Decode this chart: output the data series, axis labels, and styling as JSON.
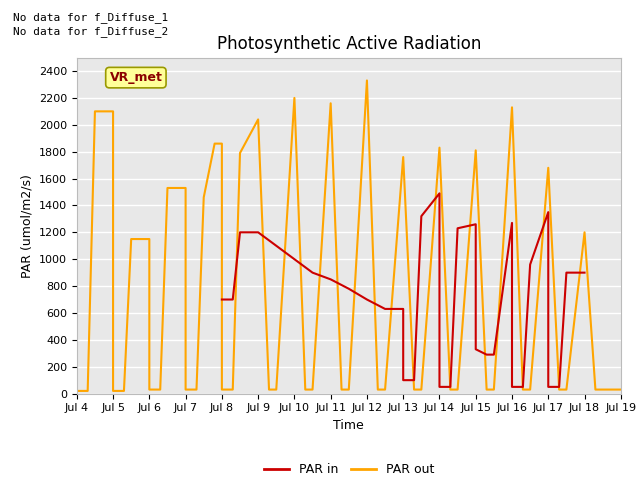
{
  "title": "Photosynthetic Active Radiation",
  "ylabel": "PAR (umol/m2/s)",
  "xlabel": "Time",
  "ylim": [
    0,
    2500
  ],
  "xlim": [
    4,
    19
  ],
  "notes": [
    "No data for f_Diffuse_1",
    "No data for f_Diffuse_2"
  ],
  "legend_label": "VR_met",
  "par_out_x": [
    4,
    4.3,
    4.5,
    5,
    5,
    5.3,
    5.5,
    6,
    6,
    6.3,
    6.5,
    7,
    7,
    7.3,
    7.5,
    7.8,
    8,
    8,
    8.3,
    8.5,
    9,
    9,
    9.3,
    9.5,
    10,
    10,
    10.3,
    10.5,
    11,
    11,
    11.3,
    11.5,
    12,
    12,
    12.3,
    12.5,
    13,
    13,
    13.3,
    13.5,
    14,
    14,
    14.3,
    14.5,
    15,
    15,
    15.3,
    15.5,
    16,
    16,
    16.3,
    16.5,
    17,
    17,
    17.3,
    17.5,
    18,
    18,
    18.3,
    18.5,
    19
  ],
  "par_out_y": [
    20,
    20,
    2100,
    2100,
    20,
    20,
    1150,
    1150,
    30,
    30,
    1530,
    1530,
    30,
    30,
    1460,
    1860,
    1860,
    30,
    30,
    1790,
    2040,
    2040,
    30,
    30,
    2200,
    2200,
    30,
    30,
    2160,
    2160,
    30,
    30,
    2330,
    2330,
    30,
    30,
    1760,
    1760,
    30,
    30,
    1830,
    1830,
    30,
    30,
    1810,
    1810,
    30,
    30,
    2130,
    2130,
    30,
    30,
    1680,
    1680,
    30,
    30,
    1200,
    1200,
    30,
    30,
    30
  ],
  "par_in_x": [
    8,
    8.3,
    8.5,
    9,
    9.5,
    10,
    10.5,
    11,
    11.5,
    12,
    12.5,
    13,
    13,
    13.3,
    13.5,
    14,
    14,
    14.3,
    14.5,
    15,
    15,
    15.3,
    15.5,
    16,
    16,
    16.3,
    16.5,
    17,
    17,
    17.3,
    17.5,
    18
  ],
  "par_in_y": [
    700,
    700,
    1200,
    1200,
    1100,
    1000,
    900,
    850,
    780,
    700,
    630,
    630,
    100,
    100,
    1320,
    1490,
    50,
    50,
    1230,
    1260,
    330,
    290,
    290,
    1270,
    50,
    50,
    960,
    1350,
    50,
    50,
    900,
    900
  ],
  "par_out_color": "#FFA500",
  "par_in_color": "#CC0000",
  "bg_color": "#E8E8E8",
  "grid_color": "#FFFFFF",
  "yticks": [
    0,
    200,
    400,
    600,
    800,
    1000,
    1200,
    1400,
    1600,
    1800,
    2000,
    2200,
    2400
  ],
  "xtick_days": [
    4,
    5,
    6,
    7,
    8,
    9,
    10,
    11,
    12,
    13,
    14,
    15,
    16,
    17,
    18,
    19
  ],
  "title_fontsize": 12,
  "label_fontsize": 9,
  "tick_fontsize": 8,
  "vr_met_color": "#8B0000",
  "vr_met_bg": "#FFFF99",
  "vr_met_edge": "#999900"
}
